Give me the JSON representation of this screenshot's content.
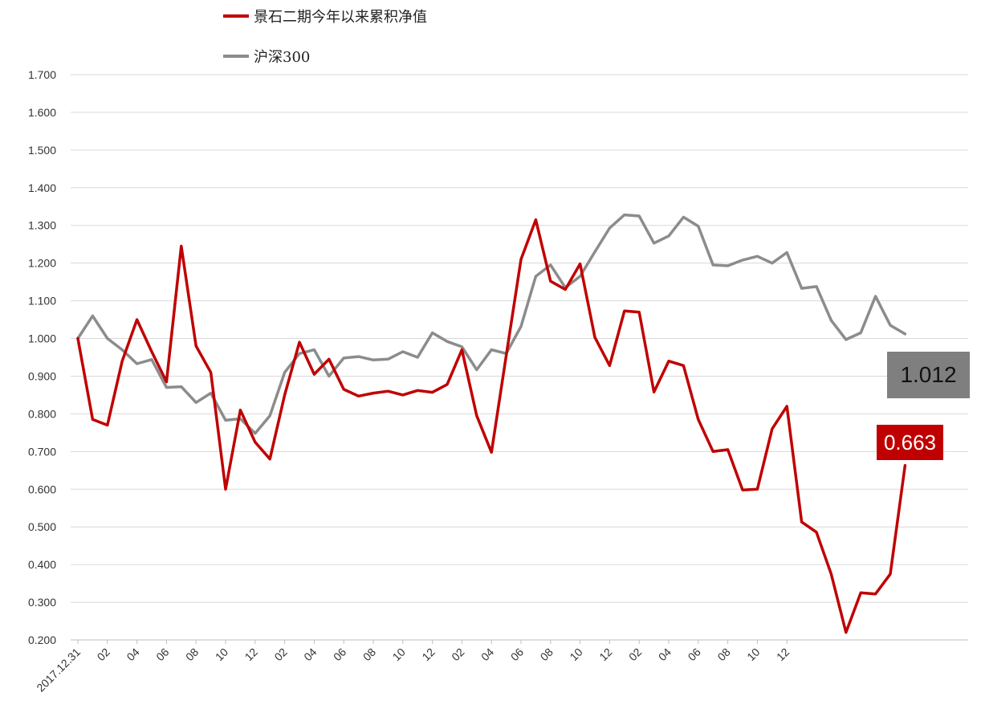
{
  "chart_data": {
    "type": "line",
    "title": "",
    "xlabel": "",
    "ylabel": "",
    "ylim": [
      0.2,
      1.7
    ],
    "yticks": [
      "1.700",
      "1.600",
      "1.500",
      "1.400",
      "1.300",
      "1.200",
      "1.100",
      "1.000",
      "0.900",
      "0.800",
      "0.700",
      "0.600",
      "0.500",
      "0.400",
      "0.300",
      "0.200"
    ],
    "xticks": [
      "2017.12.31",
      "02",
      "04",
      "06",
      "08",
      "10",
      "12",
      "02",
      "04",
      "06",
      "08",
      "10",
      "12",
      "02",
      "04",
      "06",
      "08",
      "10",
      "12",
      "02",
      "04",
      "06",
      "08",
      "10",
      "12"
    ],
    "grid": true,
    "legend_position": "top",
    "series": [
      {
        "name": "景石二期今年以来累积净值",
        "color": "#c00000",
        "values": [
          1.0,
          0.785,
          0.77,
          0.94,
          1.05,
          0.965,
          0.885,
          1.245,
          0.98,
          0.91,
          0.6,
          0.81,
          0.725,
          0.68,
          0.85,
          0.99,
          0.905,
          0.945,
          0.865,
          0.847,
          0.855,
          0.86,
          0.85,
          0.862,
          0.857,
          0.878,
          0.97,
          0.795,
          0.698,
          0.955,
          1.21,
          1.315,
          1.152,
          1.13,
          1.198,
          1.003,
          0.928,
          1.073,
          1.07,
          0.858,
          0.94,
          0.928,
          0.785,
          0.7,
          0.705,
          0.598,
          0.6,
          0.76,
          0.82,
          0.513,
          0.486,
          0.375,
          0.22,
          0.325,
          0.322,
          0.375,
          0.663
        ],
        "end_label": "0.663"
      },
      {
        "name": "沪深300",
        "color": "#8c8c8c",
        "values": [
          1.0,
          1.06,
          1.0,
          0.97,
          0.933,
          0.944,
          0.87,
          0.872,
          0.83,
          0.855,
          0.783,
          0.787,
          0.748,
          0.795,
          0.91,
          0.96,
          0.97,
          0.9,
          0.948,
          0.952,
          0.943,
          0.945,
          0.965,
          0.95,
          1.015,
          0.992,
          0.978,
          0.917,
          0.97,
          0.96,
          1.032,
          1.165,
          1.195,
          1.135,
          1.165,
          1.23,
          1.293,
          1.328,
          1.325,
          1.253,
          1.272,
          1.322,
          1.298,
          1.195,
          1.193,
          1.208,
          1.218,
          1.2,
          1.228,
          1.133,
          1.138,
          1.048,
          0.997,
          1.015,
          1.112,
          1.035,
          1.012
        ],
        "end_label": "1.012"
      }
    ]
  }
}
